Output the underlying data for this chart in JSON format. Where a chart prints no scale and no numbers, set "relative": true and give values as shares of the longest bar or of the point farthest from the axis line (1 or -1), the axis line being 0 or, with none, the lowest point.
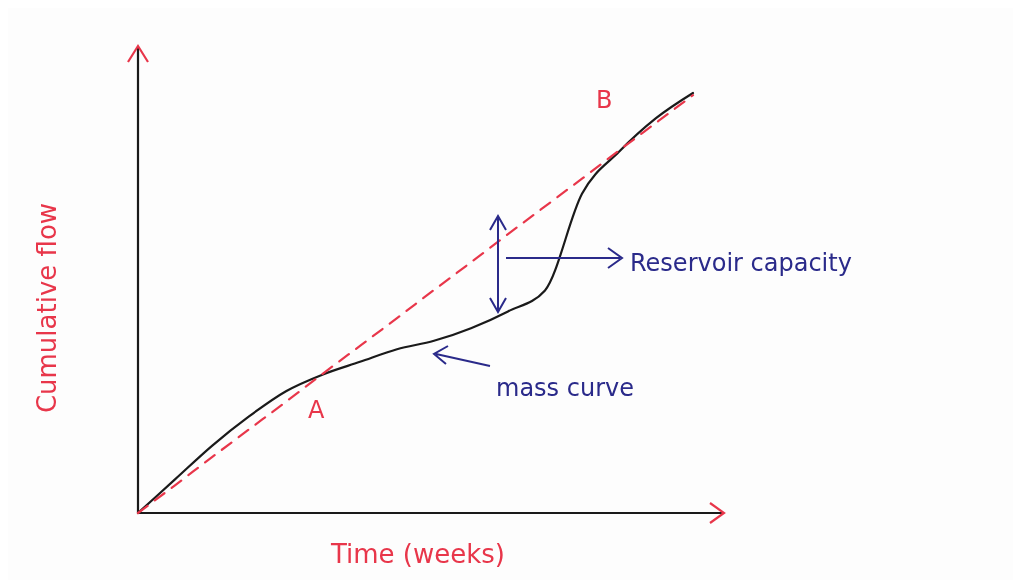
{
  "chart_data": {
    "type": "line",
    "relative": true,
    "xlabel": "Time (weeks)",
    "ylabel": "Cumulative flow",
    "categories": [
      null,
      null,
      null,
      null,
      null,
      null,
      null,
      null,
      null,
      null,
      null,
      null,
      null,
      null,
      null,
      null
    ],
    "series": [
      {
        "color": "#1a1a1a",
        "line_style": "solid",
        "values": [
          0,
          0.08,
          0.16,
          0.23,
          0.29,
          0.33,
          0.36,
          0.39,
          0.41,
          0.44,
          0.48,
          0.53,
          0.76,
          0.86,
          0.94,
          1
        ]
      },
      {
        "color": "#e8364a",
        "line_style": "dashed",
        "values": [
          0,
          0.066,
          0.133,
          0.199,
          0.265,
          0.332,
          0.398,
          0.464,
          0.531,
          0.597,
          0.664,
          0.73,
          0.796,
          0.863,
          0.929,
          0.995
        ]
      }
    ],
    "annotations": [
      "A",
      "B",
      "Reservoir capacity",
      "mass curve"
    ]
  }
}
